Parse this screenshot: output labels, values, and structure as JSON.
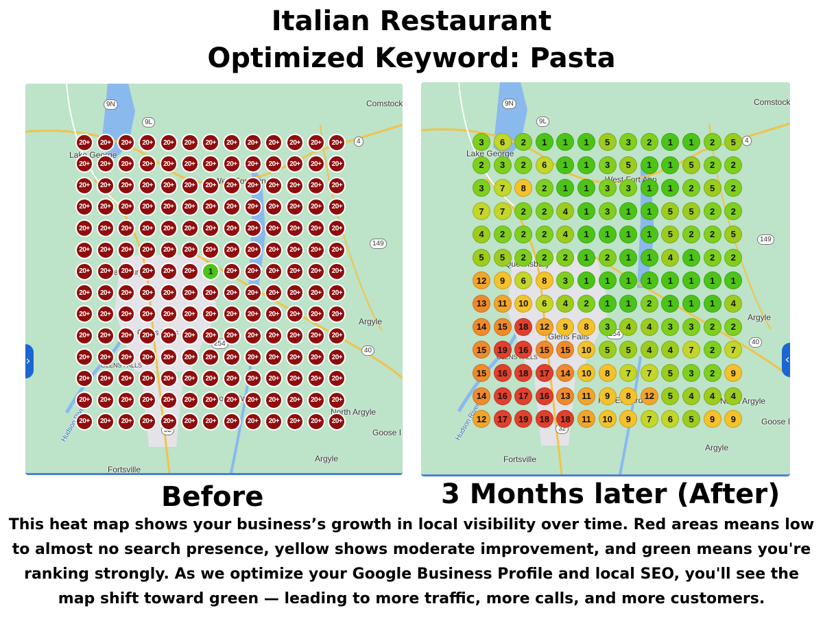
{
  "title_line1": "Italian Restaurant",
  "title_line2": "Optimized Keyword: Pasta",
  "before_caption": "Before",
  "after_caption": "3 Months later (After)",
  "description": "This heat map shows your business’s growth in local visibility over time. Red areas means low to almost no search presence, yellow shows moderate improvement, and green means you're ranking strongly. As we optimize your Google Business Profile and local SEO, you'll see the map shift toward green — leading to more traffic, more calls, and more customers.",
  "before_map": {
    "places": [
      "Comstock",
      "Lake George",
      "West Fort Ann",
      "Queensbury",
      "Glens Falls",
      "GLENS FALLS",
      "Fort Edward",
      "North Argyle",
      "Goose I",
      "Argyle",
      "Fortsville",
      "Hudson River",
      "Argyle"
    ],
    "shields": [
      "9N",
      "9L",
      "4",
      "149",
      "254",
      "40",
      "32"
    ],
    "rank_grid": [
      [
        "20+",
        "20+",
        "20+",
        "20+",
        "20+",
        "20+",
        "20+",
        "20+",
        "20+",
        "20+",
        "20+",
        "20+",
        "20+"
      ],
      [
        "20+",
        "20+",
        "20+",
        "20+",
        "20+",
        "20+",
        "20+",
        "20+",
        "20+",
        "20+",
        "20+",
        "20+",
        "20+"
      ],
      [
        "20+",
        "20+",
        "20+",
        "20+",
        "20+",
        "20+",
        "20+",
        "20+",
        "20+",
        "20+",
        "20+",
        "20+",
        "20+"
      ],
      [
        "20+",
        "20+",
        "20+",
        "20+",
        "20+",
        "20+",
        "20+",
        "20+",
        "20+",
        "20+",
        "20+",
        "20+",
        "20+"
      ],
      [
        "20+",
        "20+",
        "20+",
        "20+",
        "20+",
        "20+",
        "20+",
        "20+",
        "20+",
        "20+",
        "20+",
        "20+",
        "20+"
      ],
      [
        "20+",
        "20+",
        "20+",
        "20+",
        "20+",
        "20+",
        "20+",
        "20+",
        "20+",
        "20+",
        "20+",
        "20+",
        "20+"
      ],
      [
        "20+",
        "20+",
        "20+",
        "20+",
        "20+",
        "20+",
        "1",
        "20+",
        "20+",
        "20+",
        "20+",
        "20+",
        "20+"
      ],
      [
        "20+",
        "20+",
        "20+",
        "20+",
        "20+",
        "20+",
        "20+",
        "20+",
        "20+",
        "20+",
        "20+",
        "20+",
        "20+"
      ],
      [
        "20+",
        "20+",
        "20+",
        "20+",
        "20+",
        "20+",
        "20+",
        "20+",
        "20+",
        "20+",
        "20+",
        "20+",
        "20+"
      ],
      [
        "20+",
        "20+",
        "20+",
        "20+",
        "20+",
        "20+",
        "20+",
        "20+",
        "20+",
        "20+",
        "20+",
        "20+",
        "20+"
      ],
      [
        "20+",
        "20+",
        "20+",
        "20+",
        "20+",
        "20+",
        "20+",
        "20+",
        "20+",
        "20+",
        "20+",
        "20+",
        "20+"
      ],
      [
        "20+",
        "20+",
        "20+",
        "20+",
        "20+",
        "20+",
        "20+",
        "20+",
        "20+",
        "20+",
        "20+",
        "20+",
        "20+"
      ],
      [
        "20+",
        "20+",
        "20+",
        "20+",
        "20+",
        "20+",
        "20+",
        "20+",
        "20+",
        "20+",
        "20+",
        "20+",
        "20+"
      ],
      [
        "20+",
        "20+",
        "20+",
        "20+",
        "20+",
        "20+",
        "20+",
        "20+",
        "20+",
        "20+",
        "20+",
        "20+",
        "20+"
      ]
    ]
  },
  "after_map": {
    "places": [
      "Comstock",
      "Lake George",
      "West Fort Ann",
      "Queensbury",
      "Glens Falls",
      "GLENS FALLS",
      "Fort Edward",
      "North Argyle",
      "Goose I",
      "Argyle",
      "Fortsville",
      "Hudson River",
      "Argyle"
    ],
    "shields": [
      "9N",
      "9L",
      "4",
      "149",
      "254",
      "40",
      "32"
    ],
    "rank_grid": [
      [
        "3",
        "6",
        "2",
        "1",
        "1",
        "1",
        "5",
        "3",
        "2",
        "1",
        "1",
        "2",
        "5"
      ],
      [
        "2",
        "3",
        "2",
        "6",
        "1",
        "1",
        "3",
        "5",
        "1",
        "1",
        "5",
        "2",
        "2"
      ],
      [
        "3",
        "7",
        "8",
        "2",
        "1",
        "1",
        "3",
        "3",
        "1",
        "1",
        "2",
        "5",
        "2"
      ],
      [
        "7",
        "7",
        "2",
        "2",
        "4",
        "1",
        "3",
        "1",
        "1",
        "5",
        "5",
        "2",
        "2"
      ],
      [
        "4",
        "2",
        "2",
        "2",
        "4",
        "1",
        "1",
        "1",
        "1",
        "5",
        "2",
        "2",
        "5"
      ],
      [
        "5",
        "5",
        "2",
        "2",
        "2",
        "1",
        "2",
        "1",
        "1",
        "4",
        "1",
        "2",
        "2"
      ],
      [
        "12",
        "9",
        "6",
        "8",
        "3",
        "1",
        "1",
        "1",
        "1",
        "1",
        "1",
        "1",
        "1"
      ],
      [
        "13",
        "11",
        "10",
        "6",
        "4",
        "2",
        "1",
        "1",
        "2",
        "1",
        "1",
        "1",
        "4"
      ],
      [
        "14",
        "15",
        "18",
        "12",
        "9",
        "8",
        "3",
        "4",
        "4",
        "3",
        "3",
        "2",
        "2"
      ],
      [
        "15",
        "19",
        "16",
        "15",
        "15",
        "10",
        "5",
        "5",
        "4",
        "4",
        "7",
        "2",
        "7"
      ],
      [
        "15",
        "16",
        "18",
        "17",
        "14",
        "10",
        "8",
        "7",
        "7",
        "5",
        "3",
        "2",
        "9"
      ],
      [
        "14",
        "16",
        "17",
        "16",
        "13",
        "11",
        "9",
        "8",
        "12",
        "5",
        "4",
        "4",
        "4"
      ],
      [
        "12",
        "17",
        "19",
        "18",
        "18",
        "11",
        "10",
        "9",
        "7",
        "6",
        "5",
        "9",
        "9"
      ]
    ]
  },
  "colors": {
    "red_pin": "#8f0d0d",
    "rank_top": "#4cc417",
    "rank_good": "#9ccc1d",
    "rank_moderate": "#f4c22b",
    "rank_low": "#f08a2a",
    "rank_poor": "#e0402c",
    "map_land": "#b9e0c6",
    "map_water": "#8ab9ee"
  }
}
